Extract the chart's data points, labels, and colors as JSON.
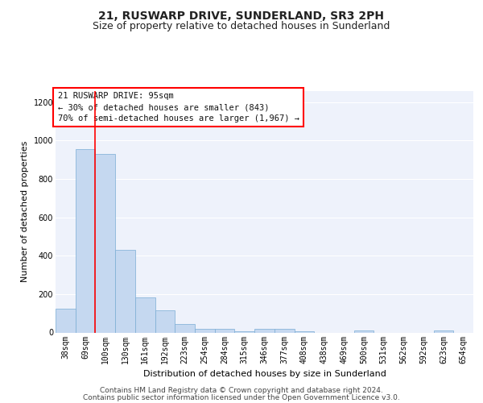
{
  "title": "21, RUSWARP DRIVE, SUNDERLAND, SR3 2PH",
  "subtitle": "Size of property relative to detached houses in Sunderland",
  "xlabel": "Distribution of detached houses by size in Sunderland",
  "ylabel": "Number of detached properties",
  "bar_color": "#c5d8f0",
  "bar_edge_color": "#7aadd4",
  "background_color": "#eef2fb",
  "grid_color": "#ffffff",
  "fig_background": "#ffffff",
  "categories": [
    "38sqm",
    "69sqm",
    "100sqm",
    "130sqm",
    "161sqm",
    "192sqm",
    "223sqm",
    "254sqm",
    "284sqm",
    "315sqm",
    "346sqm",
    "377sqm",
    "408sqm",
    "438sqm",
    "469sqm",
    "500sqm",
    "531sqm",
    "562sqm",
    "592sqm",
    "623sqm",
    "654sqm"
  ],
  "values": [
    125,
    955,
    930,
    430,
    182,
    115,
    43,
    20,
    20,
    5,
    20,
    20,
    5,
    0,
    0,
    10,
    0,
    0,
    0,
    10,
    0
  ],
  "ylim": [
    0,
    1260
  ],
  "yticks": [
    0,
    200,
    400,
    600,
    800,
    1000,
    1200
  ],
  "red_line_index": 2,
  "annotation_text_line1": "21 RUSWARP DRIVE: 95sqm",
  "annotation_text_line2": "← 30% of detached houses are smaller (843)",
  "annotation_text_line3": "70% of semi-detached houses are larger (1,967) →",
  "footer_line1": "Contains HM Land Registry data © Crown copyright and database right 2024.",
  "footer_line2": "Contains public sector information licensed under the Open Government Licence v3.0.",
  "title_fontsize": 10,
  "subtitle_fontsize": 9,
  "axis_label_fontsize": 8,
  "tick_fontsize": 7,
  "annotation_fontsize": 7.5,
  "footer_fontsize": 6.5
}
